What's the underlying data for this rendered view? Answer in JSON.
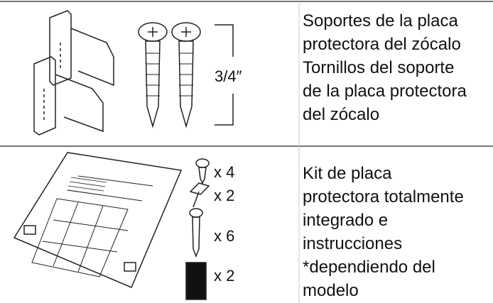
{
  "rows": [
    {
      "labels": [
        "3/4″"
      ],
      "description_lines": [
        "Soportes de la placa",
        "protectora del zócalo",
        "Tornillos del soporte",
        "de la placa protectora",
        "del zócalo"
      ]
    },
    {
      "labels": [
        "x 4",
        "x 2",
        "x 6",
        "x 2"
      ],
      "description_lines": [
        "Kit de placa",
        "protectora totalmente",
        "integrado e",
        "instrucciones",
        "*dependiendo del",
        "modelo"
      ]
    }
  ]
}
